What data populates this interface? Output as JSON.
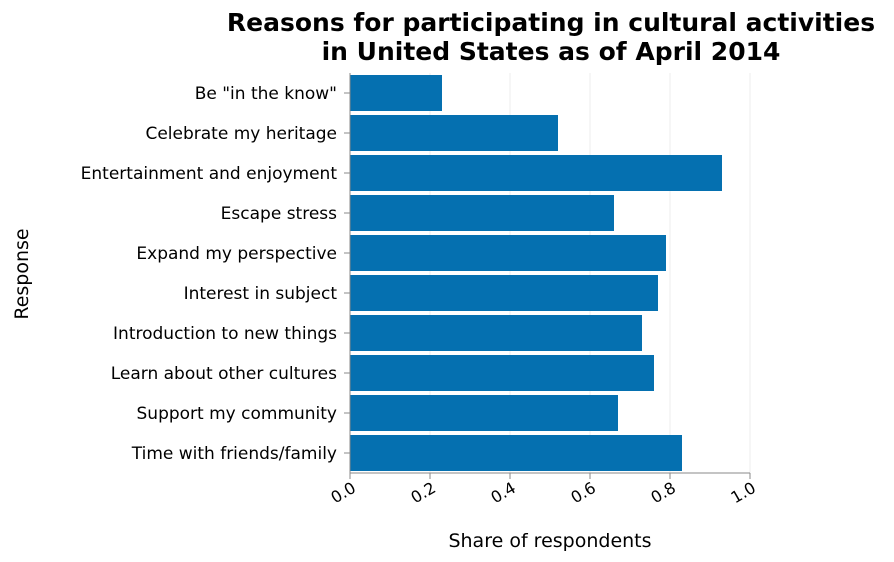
{
  "chart_data": {
    "type": "bar",
    "orientation": "horizontal",
    "title_lines": [
      "Reasons for participating in cultural activities",
      "in United States as of April 2014"
    ],
    "xlabel": "Share of respondents",
    "ylabel": "Response",
    "xlim": [
      0,
      1.0
    ],
    "x_ticks": [
      "0.0",
      "0.2",
      "0.4",
      "0.6",
      "0.8",
      "1.0"
    ],
    "x_tick_values": [
      0,
      0.2,
      0.4,
      0.6,
      0.8,
      1.0
    ],
    "grid": true,
    "bar_color": "#0570b0",
    "categories": [
      "Be \"in the know\"",
      "Celebrate my heritage",
      "Entertainment and enjoyment",
      "Escape stress",
      "Expand my perspective",
      "Interest in subject",
      "Introduction to new things",
      "Learn about other cultures",
      "Support my community",
      "Time with friends/family"
    ],
    "values": [
      0.23,
      0.52,
      0.93,
      0.66,
      0.79,
      0.77,
      0.73,
      0.76,
      0.67,
      0.83
    ]
  }
}
